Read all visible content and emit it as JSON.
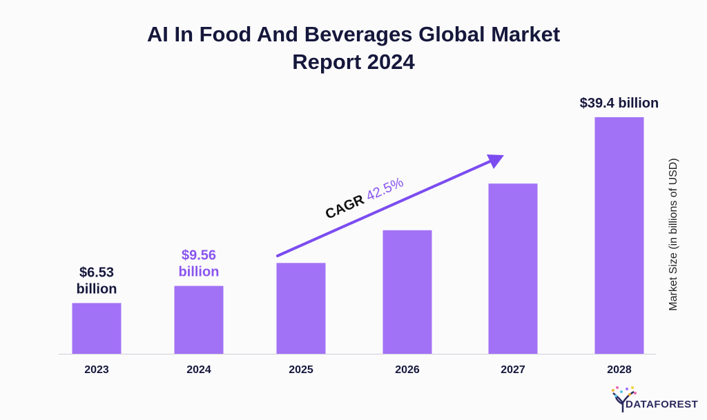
{
  "chart_data": {
    "type": "bar",
    "title": "AI In Food And Beverages Global Market Report 2024",
    "title_lines": [
      "AI In Food And Beverages Global Market",
      "Report 2024"
    ],
    "ylabel": "Market Size (in billions of USD)",
    "xlabel": "",
    "categories": [
      "2023",
      "2024",
      "2025",
      "2026",
      "2027",
      "2028"
    ],
    "values": [
      6.53,
      9.56,
      13.62,
      19.41,
      27.66,
      39.4
    ],
    "data_labels": [
      {
        "category": "2023",
        "lines": [
          "$6.53",
          "billion"
        ],
        "color": "#15173b"
      },
      {
        "category": "2024",
        "lines": [
          "$9.56",
          "billion"
        ],
        "color": "#8a55ee"
      },
      {
        "category": "2028",
        "lines": [
          "$39.4 billion"
        ],
        "color": "#15173b"
      }
    ],
    "annotation": {
      "label": "CAGR",
      "value": "42.5%"
    },
    "grid": false,
    "legend": "none",
    "colors": {
      "bar": "#a272f6",
      "arrow": "#7b4cf0",
      "accent_text": "#8a55ee",
      "title": "#15173b"
    }
  },
  "logo": {
    "text": "DATAFOREST"
  }
}
